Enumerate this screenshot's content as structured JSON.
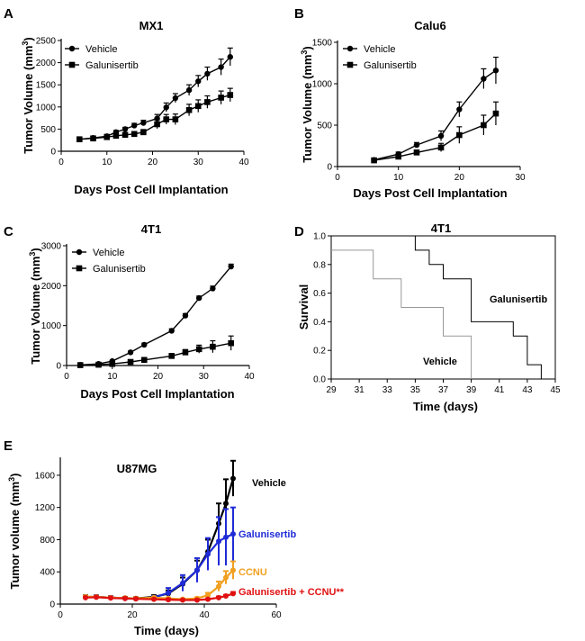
{
  "chart_data": [
    {
      "panel": "A",
      "type": "line",
      "title": "MX1",
      "xlabel": "Days Post Cell Implantation",
      "ylabel": "Tumor Volume (mm3)",
      "xlim": [
        0,
        40
      ],
      "ylim": [
        0,
        2500
      ],
      "xticks": [
        0,
        10,
        20,
        30,
        40
      ],
      "yticks": [
        0,
        500,
        1000,
        1500,
        2000,
        2500
      ],
      "legend": "top-left",
      "series": [
        {
          "name": "Vehicle",
          "marker": "circle",
          "color": "#000000",
          "x": [
            4,
            7,
            10,
            12,
            14,
            16,
            18,
            21,
            23,
            25,
            28,
            30,
            32,
            35,
            37
          ],
          "y": [
            270,
            300,
            340,
            430,
            500,
            580,
            640,
            740,
            990,
            1200,
            1380,
            1580,
            1750,
            1900,
            2130
          ],
          "err": [
            30,
            30,
            40,
            40,
            40,
            50,
            60,
            90,
            100,
            100,
            120,
            130,
            150,
            180,
            200
          ]
        },
        {
          "name": "Galunisertib",
          "marker": "square",
          "color": "#000000",
          "x": [
            4,
            7,
            10,
            12,
            14,
            16,
            18,
            21,
            23,
            25,
            28,
            30,
            32,
            35,
            37
          ],
          "y": [
            270,
            290,
            320,
            350,
            370,
            390,
            430,
            610,
            720,
            720,
            930,
            1020,
            1110,
            1210,
            1270
          ],
          "err": [
            30,
            30,
            40,
            40,
            40,
            50,
            60,
            100,
            110,
            120,
            130,
            140,
            140,
            150,
            150
          ]
        }
      ]
    },
    {
      "panel": "B",
      "type": "line",
      "title": "Calu6",
      "xlabel": "Days Post Cell Implantation",
      "ylabel": "Tumor Volume (mm3)",
      "xlim": [
        0,
        30
      ],
      "ylim": [
        0,
        1500
      ],
      "xticks": [
        0,
        10,
        20,
        30
      ],
      "yticks": [
        0,
        500,
        1000,
        1500
      ],
      "legend": "top-left",
      "series": [
        {
          "name": "Vehicle",
          "marker": "circle",
          "color": "#000000",
          "x": [
            6,
            10,
            13,
            17,
            20,
            24,
            26
          ],
          "y": [
            80,
            150,
            260,
            370,
            690,
            1060,
            1160
          ],
          "err": [
            15,
            25,
            30,
            60,
            90,
            120,
            160
          ]
        },
        {
          "name": "Galunisertib",
          "marker": "square",
          "color": "#000000",
          "x": [
            6,
            10,
            13,
            17,
            20,
            24,
            26
          ],
          "y": [
            75,
            120,
            170,
            230,
            380,
            500,
            640
          ],
          "err": [
            15,
            20,
            30,
            50,
            100,
            120,
            140
          ]
        }
      ]
    },
    {
      "panel": "C",
      "type": "line",
      "title": "4T1",
      "xlabel": "Days Post Cell Implantation",
      "ylabel": "Tumor Volume (mm3)",
      "xlim": [
        0,
        40
      ],
      "ylim": [
        0,
        3000
      ],
      "xticks": [
        0,
        10,
        20,
        30,
        40
      ],
      "yticks": [
        0,
        1000,
        2000,
        3000
      ],
      "legend": "top-left",
      "series": [
        {
          "name": "Vehicle",
          "marker": "circle",
          "color": "#000000",
          "x": [
            3,
            7,
            10,
            14,
            17,
            23,
            26,
            29,
            32,
            36
          ],
          "y": [
            15,
            40,
            110,
            330,
            520,
            870,
            1250,
            1690,
            1930,
            2480
          ],
          "err": [
            5,
            10,
            20,
            30,
            40,
            50,
            50,
            50,
            60,
            60
          ]
        },
        {
          "name": "Galunisertib",
          "marker": "square",
          "color": "#000000",
          "x": [
            3,
            7,
            10,
            14,
            17,
            23,
            26,
            29,
            32,
            36
          ],
          "y": [
            10,
            20,
            40,
            90,
            140,
            240,
            330,
            410,
            470,
            560
          ],
          "err": [
            5,
            10,
            15,
            20,
            30,
            40,
            70,
            100,
            150,
            180
          ]
        }
      ]
    },
    {
      "panel": "D",
      "type": "line",
      "subtype": "step",
      "title": "4T1",
      "xlabel": "Time (days)",
      "ylabel": "Survival",
      "xlim": [
        29,
        45
      ],
      "ylim": [
        0,
        1
      ],
      "xticks": [
        29,
        31,
        33,
        35,
        37,
        39,
        41,
        43,
        45
      ],
      "yticks": [
        0.0,
        0.2,
        0.4,
        0.6,
        0.8,
        1.0
      ],
      "series": [
        {
          "name": "Galunisertib",
          "color": "#000000",
          "x": [
            29,
            35,
            35,
            36,
            36,
            37,
            37,
            39,
            39,
            42,
            42,
            43,
            43,
            44,
            44
          ],
          "y": [
            1.0,
            1.0,
            0.9,
            0.9,
            0.8,
            0.8,
            0.7,
            0.7,
            0.4,
            0.4,
            0.3,
            0.3,
            0.1,
            0.1,
            0.0
          ]
        },
        {
          "name": "Vehicle",
          "color": "#999999",
          "x": [
            29,
            32,
            32,
            34,
            34,
            37,
            37,
            39,
            39
          ],
          "y": [
            0.9,
            0.9,
            0.7,
            0.7,
            0.5,
            0.5,
            0.3,
            0.3,
            0.0
          ]
        }
      ]
    },
    {
      "panel": "E",
      "type": "line",
      "title": "U87MG",
      "xlabel": "Time (days)",
      "ylabel": "Tumor volume (mm3)",
      "xlim": [
        0,
        60
      ],
      "ylim": [
        0,
        1800
      ],
      "xticks": [
        0,
        20,
        40,
        60
      ],
      "yticks": [
        0,
        400,
        800,
        1200,
        1600
      ],
      "series": [
        {
          "name": "Vehicle",
          "color": "#000000",
          "x": [
            7,
            10,
            14,
            18,
            21,
            26,
            30,
            34,
            38,
            41,
            44,
            46,
            48
          ],
          "y": [
            90,
            90,
            80,
            75,
            70,
            90,
            130,
            250,
            420,
            650,
            1000,
            1250,
            1560
          ],
          "err": [
            20,
            20,
            20,
            15,
            15,
            20,
            40,
            80,
            120,
            150,
            250,
            300,
            220
          ]
        },
        {
          "name": "Galunisertib",
          "color": "#1f2bd6",
          "x": [
            7,
            10,
            14,
            18,
            21,
            26,
            30,
            34,
            38,
            41,
            44,
            46,
            48
          ],
          "y": [
            85,
            90,
            80,
            70,
            65,
            80,
            140,
            260,
            420,
            620,
            780,
            830,
            870
          ],
          "err": [
            20,
            20,
            20,
            15,
            15,
            20,
            60,
            100,
            150,
            200,
            300,
            350,
            330
          ]
        },
        {
          "name": "CCNU",
          "color": "#f0a020",
          "x": [
            7,
            10,
            14,
            18,
            21,
            26,
            30,
            34,
            38,
            41,
            44,
            46,
            48
          ],
          "y": [
            90,
            90,
            80,
            75,
            70,
            80,
            70,
            60,
            70,
            110,
            220,
            330,
            420
          ],
          "err": [
            15,
            15,
            15,
            10,
            10,
            10,
            10,
            10,
            15,
            30,
            60,
            80,
            110
          ]
        },
        {
          "name": "Galunisertib + CCNU**",
          "color": "#e01010",
          "x": [
            7,
            10,
            14,
            18,
            21,
            26,
            30,
            34,
            38,
            41,
            44,
            46,
            48
          ],
          "y": [
            80,
            85,
            75,
            70,
            65,
            60,
            55,
            50,
            50,
            60,
            80,
            100,
            130
          ],
          "err": [
            10,
            10,
            10,
            10,
            10,
            10,
            10,
            10,
            10,
            10,
            15,
            15,
            20
          ]
        }
      ]
    }
  ]
}
